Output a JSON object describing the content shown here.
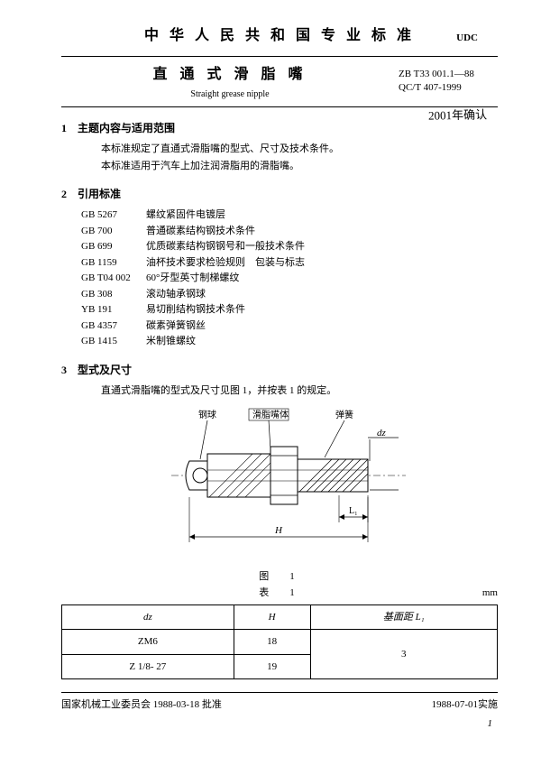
{
  "header": {
    "country": "中 华 人 民 共 和 国 专 业 标 准",
    "udc": "UDC",
    "title_cn": "直 通 式 滑 脂 嘴",
    "title_en": "Straight grease nipple",
    "code1": "ZB T33 001.1—88",
    "code2": "QC/T 407-1999",
    "handwritten": "2001年确认"
  },
  "sec1": {
    "heading": "1　主题内容与适用范围",
    "p1": "本标准规定了直通式滑脂嘴的型式、尺寸及技术条件。",
    "p2": "本标准适用于汽车上加注润滑脂用的滑脂嘴。"
  },
  "sec2": {
    "heading": "2　引用标准",
    "refs": [
      {
        "code": "GB 5267",
        "title": "螺纹紧固件电镀层"
      },
      {
        "code": "GB 700",
        "title": "普通碳素结构钢技术条件"
      },
      {
        "code": "GB 699",
        "title": "优质碳素结构钢钢号和一般技术条件"
      },
      {
        "code": "GB 1159",
        "title": "油杯技术要求检验规则　包装与标志"
      },
      {
        "code": "GB T04 002",
        "title": "60°牙型英寸制梯螺纹"
      },
      {
        "code": "GB 308",
        "title": "滚动轴承钢球"
      },
      {
        "code": "YB 191",
        "title": "易切削结构钢技术条件"
      },
      {
        "code": "GB 4357",
        "title": "碳素弹簧钢丝"
      },
      {
        "code": "GB 1415",
        "title": "米制锥螺纹"
      }
    ]
  },
  "sec3": {
    "heading": "3　型式及尺寸",
    "p1": "直通式滑脂嘴的型式及尺寸见图 1，并按表 1 的规定。"
  },
  "figure": {
    "label_ball": "钢球",
    "label_body": "滑脂嘴体",
    "label_spring": "弹簧",
    "dim_dz": "dz",
    "dim_L": "L₁",
    "dim_H": "H",
    "caption": "图　1",
    "table_caption": "表　1",
    "unit": "mm"
  },
  "table": {
    "cols": [
      "dz",
      "H",
      "基面距  L₁"
    ],
    "rows": [
      {
        "dz": "ZM6",
        "H": "18",
        "L": "3"
      },
      {
        "dz": "Z 1/8- 27",
        "H": "19",
        "L": ""
      }
    ]
  },
  "footer": {
    "left": "国家机械工业委员会 1988-03-18 批准",
    "right": "1988-07-01实施",
    "pagenum": "1"
  }
}
